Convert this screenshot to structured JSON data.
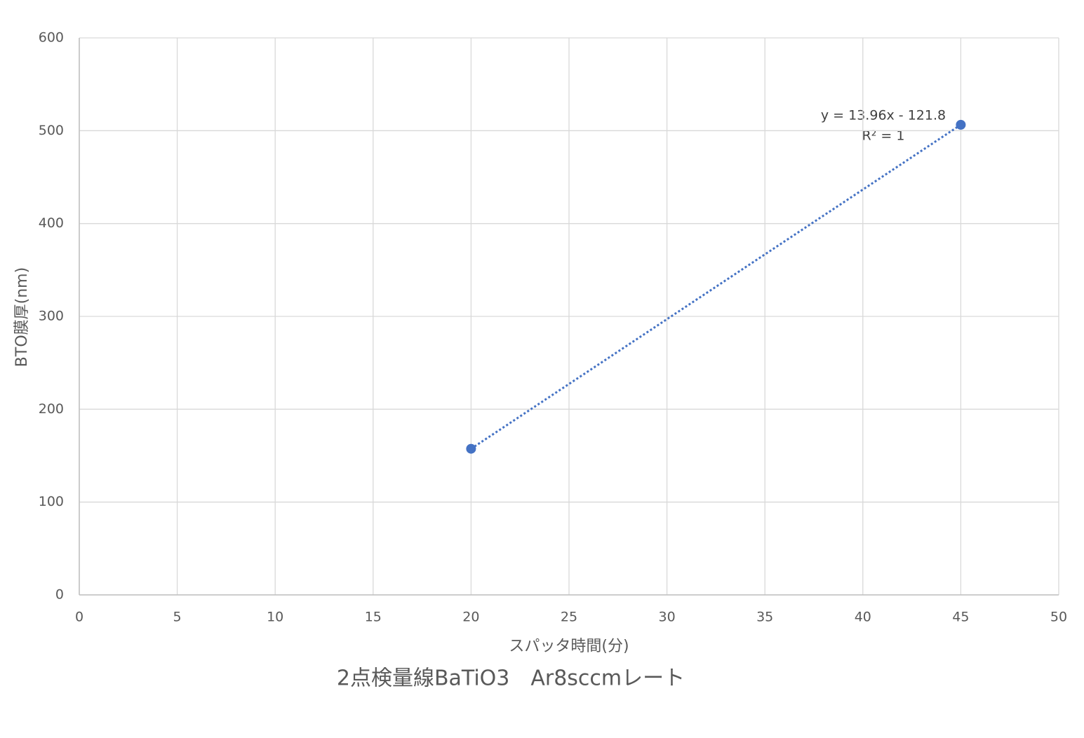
{
  "chart_data": {
    "type": "scatter",
    "title": "2点検量線BaTiO3　Ar8sccmレート",
    "x_label": "スパッタ時間(分)",
    "y_label": "BTO膜厚(nm)",
    "series": [
      {
        "name": "BTO",
        "color": "#4472c4",
        "x": [
          20,
          45
        ],
        "values": [
          157.4,
          506.4
        ]
      }
    ],
    "trendline": {
      "kind": "linear",
      "color": "#4472c4",
      "style": "dotted"
    },
    "annotations": [
      "y = 13.96x - 121.8",
      "R² = 1"
    ],
    "xlim": [
      0,
      50
    ],
    "xticks": [
      0,
      5,
      10,
      15,
      20,
      25,
      30,
      35,
      40,
      45,
      50
    ],
    "ylim": [
      0,
      600
    ],
    "yticks": [
      0,
      100,
      200,
      300,
      400,
      500,
      600
    ],
    "grid": true
  }
}
